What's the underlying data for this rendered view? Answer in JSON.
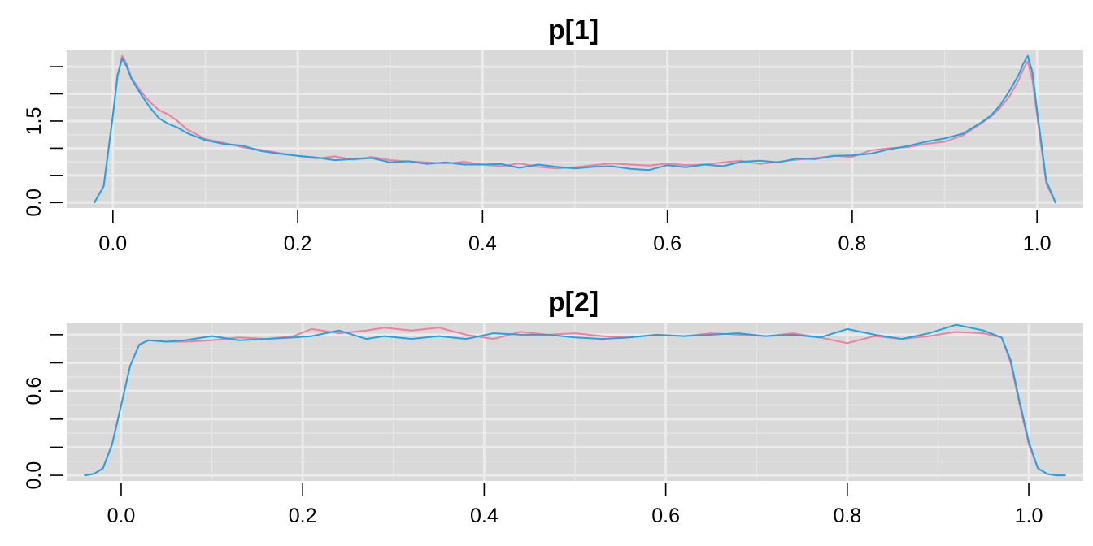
{
  "colors": {
    "chain_1": "#f07f9e",
    "chain_2": "#1fa3e6",
    "panel": "#d9d9d9",
    "grid": "#ebebeb"
  },
  "chart_data": [
    {
      "type": "line",
      "title": "p[1]",
      "xlabel": "",
      "ylabel": "",
      "xlim": [
        -0.05,
        1.05
      ],
      "ylim": [
        -0.1,
        2.8
      ],
      "x_ticks": [
        0.0,
        0.2,
        0.4,
        0.6,
        0.8,
        1.0
      ],
      "x_tick_labels": [
        "0.0",
        "0.2",
        "0.4",
        "0.6",
        "0.8",
        "1.0"
      ],
      "y_ticks": [
        0,
        0.5,
        1,
        1.5,
        2,
        2.5
      ],
      "y_tick_labels": [
        "0.0",
        "",
        "",
        "1.5",
        "",
        ""
      ],
      "grid": true,
      "series": [
        {
          "color": "#f07f9e",
          "x": [
            -0.02,
            -0.01,
            0.0,
            0.005,
            0.01,
            0.015,
            0.02,
            0.03,
            0.04,
            0.05,
            0.06,
            0.07,
            0.08,
            0.1,
            0.12,
            0.14,
            0.16,
            0.18,
            0.2,
            0.22,
            0.24,
            0.26,
            0.28,
            0.3,
            0.32,
            0.34,
            0.36,
            0.38,
            0.4,
            0.42,
            0.44,
            0.46,
            0.48,
            0.5,
            0.52,
            0.54,
            0.56,
            0.58,
            0.6,
            0.62,
            0.64,
            0.66,
            0.68,
            0.7,
            0.72,
            0.74,
            0.76,
            0.78,
            0.8,
            0.82,
            0.84,
            0.86,
            0.88,
            0.9,
            0.92,
            0.94,
            0.95,
            0.96,
            0.97,
            0.98,
            0.985,
            0.99,
            0.995,
            1.0,
            1.01,
            1.02
          ],
          "y": [
            0.0,
            0.3,
            1.6,
            2.3,
            2.7,
            2.55,
            2.3,
            2.05,
            1.85,
            1.7,
            1.62,
            1.5,
            1.35,
            1.17,
            1.1,
            1.02,
            0.97,
            0.91,
            0.86,
            0.81,
            0.85,
            0.79,
            0.84,
            0.78,
            0.76,
            0.74,
            0.72,
            0.75,
            0.7,
            0.67,
            0.72,
            0.66,
            0.63,
            0.65,
            0.69,
            0.72,
            0.7,
            0.68,
            0.72,
            0.69,
            0.7,
            0.74,
            0.77,
            0.71,
            0.75,
            0.79,
            0.82,
            0.86,
            0.84,
            0.96,
            1.0,
            1.02,
            1.08,
            1.12,
            1.24,
            1.46,
            1.58,
            1.74,
            1.95,
            2.25,
            2.45,
            2.6,
            2.25,
            1.6,
            0.35,
            0.0
          ]
        },
        {
          "color": "#1fa3e6",
          "x": [
            -0.02,
            -0.01,
            0.0,
            0.005,
            0.01,
            0.015,
            0.02,
            0.03,
            0.04,
            0.05,
            0.06,
            0.07,
            0.08,
            0.1,
            0.12,
            0.14,
            0.16,
            0.18,
            0.2,
            0.22,
            0.24,
            0.26,
            0.28,
            0.3,
            0.32,
            0.34,
            0.36,
            0.38,
            0.4,
            0.42,
            0.44,
            0.46,
            0.48,
            0.5,
            0.52,
            0.54,
            0.56,
            0.58,
            0.6,
            0.62,
            0.64,
            0.66,
            0.68,
            0.7,
            0.72,
            0.74,
            0.76,
            0.78,
            0.8,
            0.82,
            0.84,
            0.86,
            0.88,
            0.9,
            0.92,
            0.94,
            0.95,
            0.96,
            0.97,
            0.98,
            0.985,
            0.99,
            0.995,
            1.0,
            1.01,
            1.02
          ],
          "y": [
            0.0,
            0.3,
            1.6,
            2.35,
            2.65,
            2.5,
            2.28,
            2.0,
            1.75,
            1.55,
            1.45,
            1.38,
            1.28,
            1.15,
            1.08,
            1.05,
            0.95,
            0.9,
            0.86,
            0.83,
            0.78,
            0.8,
            0.82,
            0.74,
            0.76,
            0.71,
            0.74,
            0.7,
            0.7,
            0.71,
            0.64,
            0.7,
            0.66,
            0.63,
            0.66,
            0.67,
            0.62,
            0.6,
            0.69,
            0.65,
            0.7,
            0.67,
            0.75,
            0.77,
            0.74,
            0.81,
            0.8,
            0.86,
            0.87,
            0.9,
            0.98,
            1.04,
            1.12,
            1.18,
            1.27,
            1.48,
            1.6,
            1.79,
            2.05,
            2.35,
            2.55,
            2.7,
            2.4,
            1.7,
            0.4,
            0.0
          ]
        }
      ]
    },
    {
      "type": "line",
      "title": "p[2]",
      "xlabel": "",
      "ylabel": "",
      "xlim": [
        -0.06,
        1.06
      ],
      "ylim": [
        -0.04,
        1.08
      ],
      "x_ticks": [
        0.0,
        0.2,
        0.4,
        0.6,
        0.8,
        1.0
      ],
      "x_tick_labels": [
        "0.0",
        "0.2",
        "0.4",
        "0.6",
        "0.8",
        "1.0"
      ],
      "y_ticks": [
        0,
        0.2,
        0.4,
        0.6,
        0.8,
        1.0
      ],
      "y_tick_labels": [
        "0.0",
        "",
        "",
        "0.6",
        "",
        ""
      ],
      "grid": true,
      "series": [
        {
          "color": "#f07f9e",
          "x": [
            -0.04,
            -0.03,
            -0.02,
            -0.01,
            0.0,
            0.01,
            0.02,
            0.03,
            0.05,
            0.07,
            0.1,
            0.13,
            0.16,
            0.19,
            0.21,
            0.24,
            0.27,
            0.29,
            0.32,
            0.35,
            0.38,
            0.41,
            0.44,
            0.47,
            0.5,
            0.53,
            0.56,
            0.59,
            0.62,
            0.65,
            0.68,
            0.71,
            0.74,
            0.77,
            0.8,
            0.83,
            0.86,
            0.89,
            0.92,
            0.95,
            0.97,
            0.98,
            0.99,
            1.0,
            1.01,
            1.02,
            1.03,
            1.04
          ],
          "y": [
            0.0,
            0.01,
            0.05,
            0.22,
            0.5,
            0.78,
            0.93,
            0.96,
            0.95,
            0.95,
            0.96,
            0.98,
            0.97,
            0.99,
            1.04,
            1.01,
            1.03,
            1.05,
            1.03,
            1.05,
            1.0,
            0.97,
            1.02,
            1.0,
            1.01,
            0.99,
            0.98,
            1.0,
            0.99,
            1.01,
            1.0,
            0.99,
            1.01,
            0.98,
            0.94,
            0.99,
            0.97,
            0.99,
            1.02,
            1.01,
            0.98,
            0.8,
            0.5,
            0.22,
            0.05,
            0.01,
            0.0,
            0.0
          ]
        },
        {
          "color": "#1fa3e6",
          "x": [
            -0.04,
            -0.03,
            -0.02,
            -0.01,
            0.0,
            0.01,
            0.02,
            0.03,
            0.05,
            0.07,
            0.1,
            0.13,
            0.16,
            0.19,
            0.21,
            0.24,
            0.27,
            0.29,
            0.32,
            0.35,
            0.38,
            0.41,
            0.44,
            0.47,
            0.5,
            0.53,
            0.56,
            0.59,
            0.62,
            0.65,
            0.68,
            0.71,
            0.74,
            0.77,
            0.8,
            0.83,
            0.86,
            0.89,
            0.92,
            0.95,
            0.97,
            0.98,
            0.99,
            1.0,
            1.01,
            1.02,
            1.03,
            1.04
          ],
          "y": [
            0.0,
            0.01,
            0.05,
            0.22,
            0.5,
            0.78,
            0.93,
            0.96,
            0.95,
            0.96,
            0.99,
            0.96,
            0.97,
            0.98,
            0.99,
            1.03,
            0.97,
            0.99,
            0.97,
            0.99,
            0.97,
            1.01,
            1.0,
            1.0,
            0.98,
            0.97,
            0.98,
            1.0,
            0.99,
            1.0,
            1.01,
            0.99,
            1.0,
            0.98,
            1.04,
            1.0,
            0.97,
            1.01,
            1.07,
            1.03,
            0.98,
            0.82,
            0.52,
            0.24,
            0.05,
            0.01,
            0.0,
            0.0
          ]
        }
      ]
    }
  ]
}
